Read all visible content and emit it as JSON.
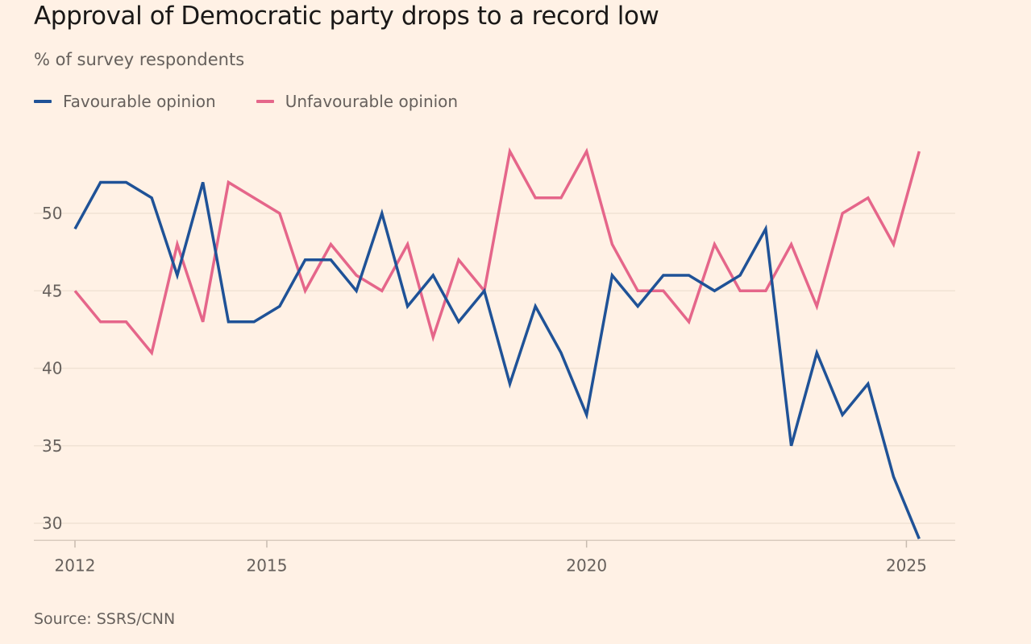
{
  "title": "Approval of Democratic party drops to a record low",
  "subtitle": "% of survey respondents",
  "source": "Source: SSRS/CNN",
  "colors": {
    "favourable": "#1F5297",
    "unfavourable": "#E5668A",
    "background": "#FFF1E5"
  },
  "chart_data": {
    "type": "line",
    "title": "Approval of Democratic party drops to a record low",
    "ylabel": "% of survey respondents",
    "xlabel": "",
    "xlim": [
      2012,
      2025.6
    ],
    "ylim": [
      29,
      56
    ],
    "y_ticks": [
      30,
      35,
      40,
      45,
      50
    ],
    "x_ticks": [
      2012,
      2015,
      2020,
      2025
    ],
    "legend": "top-left",
    "grid": true,
    "x": [
      2012,
      2012.4,
      2012.8,
      2013.2,
      2013.6,
      2014.0,
      2014.4,
      2014.8,
      2015.2,
      2015.6,
      2016.0,
      2016.4,
      2016.8,
      2017.2,
      2017.6,
      2018.0,
      2018.4,
      2018.8,
      2019.2,
      2019.6,
      2020.0,
      2020.4,
      2020.8,
      2021.2,
      2021.6,
      2022.0,
      2022.4,
      2022.8,
      2023.2,
      2023.6,
      2024.0,
      2024.4,
      2024.8,
      2025.2
    ],
    "series": [
      {
        "name": "Favourable opinion",
        "color": "#1F5297",
        "values": [
          49,
          52,
          52,
          51,
          46,
          52,
          43,
          43,
          44,
          47,
          47,
          45,
          50,
          44,
          46,
          43,
          45,
          39,
          44,
          41,
          37,
          46,
          44,
          46,
          46,
          45,
          46,
          49,
          35,
          41,
          37,
          39,
          33,
          29
        ]
      },
      {
        "name": "Unfavourable opinion",
        "color": "#E5668A",
        "values": [
          45,
          43,
          43,
          41,
          48,
          43,
          52,
          51,
          50,
          45,
          48,
          46,
          45,
          48,
          42,
          47,
          45,
          54,
          51,
          51,
          54,
          48,
          45,
          45,
          43,
          48,
          45,
          45,
          48,
          44,
          50,
          51,
          48,
          54
        ]
      }
    ]
  }
}
